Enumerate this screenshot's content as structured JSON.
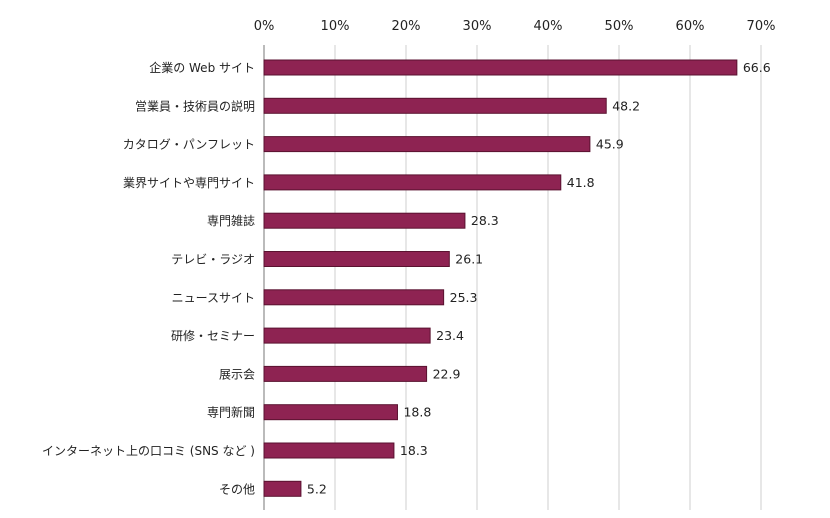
{
  "chart_data": {
    "type": "bar",
    "orientation": "horizontal",
    "categories": [
      "企業の Web サイト",
      "営業員・技術員の説明",
      "カタログ・パンフレット",
      "業界サイトや専門サイト",
      "専門雑誌",
      "テレビ・ラジオ",
      "ニュースサイト",
      "研修・セミナー",
      "展示会",
      "専門新聞",
      "インターネット上の口コミ (SNS など )",
      "その他"
    ],
    "values": [
      66.6,
      48.2,
      45.9,
      41.8,
      28.3,
      26.1,
      25.3,
      23.4,
      22.9,
      18.8,
      18.3,
      5.2
    ],
    "value_labels": [
      "66.6",
      "48.2",
      "45.9",
      "41.8",
      "28.3",
      "26.1",
      "25.3",
      "23.4",
      "22.9",
      "18.8",
      "18.3",
      "5.2"
    ],
    "xlim": [
      0,
      70
    ],
    "xticks": [
      "0%",
      "10%",
      "20%",
      "30%",
      "40%",
      "50%",
      "60%",
      "70%"
    ],
    "tick_values": [
      0,
      10,
      20,
      30,
      40,
      50,
      60,
      70
    ],
    "title": "",
    "xlabel": "",
    "ylabel": "",
    "grid": true,
    "axis_position": "top",
    "bar_color": "#8e2352"
  }
}
